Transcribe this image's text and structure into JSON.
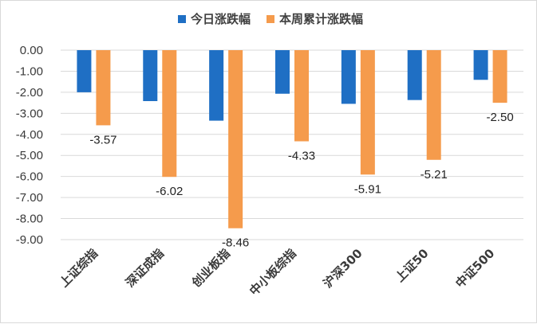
{
  "chart_data": {
    "type": "bar",
    "categories": [
      "上证综指",
      "深证成指",
      "创业板指",
      "中小板综指",
      "沪深300",
      "上证50",
      "中证500"
    ],
    "series": [
      {
        "name": "今日涨跌幅",
        "color": "#1f6fc4",
        "values": [
          -2.0,
          -2.42,
          -3.35,
          -2.07,
          -2.55,
          -2.37,
          -1.41
        ],
        "show_labels": false
      },
      {
        "name": "本周累计涨跌幅",
        "color": "#f59b4c",
        "values": [
          -3.57,
          -6.02,
          -8.46,
          -4.33,
          -5.91,
          -5.21,
          -2.5
        ],
        "show_labels": true
      }
    ],
    "y_ticks": [
      "0.00",
      "-1.00",
      "-2.00",
      "-3.00",
      "-4.00",
      "-5.00",
      "-6.00",
      "-7.00",
      "-8.00",
      "-9.00"
    ],
    "ylim": [
      -9,
      0
    ],
    "label_decimals": 2,
    "legend_position": "top-center",
    "grid": true,
    "title": "",
    "xlabel": "",
    "ylabel": ""
  }
}
